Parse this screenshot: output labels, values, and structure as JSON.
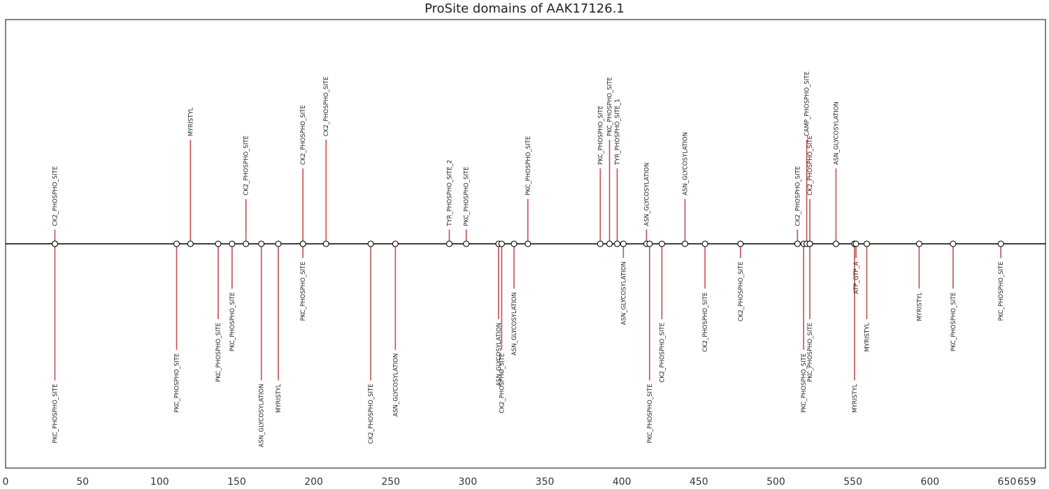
{
  "chart_data": {
    "type": "lollipop",
    "title": "ProSite domains of AAK17126.1",
    "xlim": [
      0,
      675
    ],
    "ylim": [
      -1.1,
      1.1
    ],
    "x_ticks": [
      0,
      50,
      100,
      150,
      200,
      250,
      300,
      350,
      400,
      450,
      500,
      550,
      600,
      650,
      659
    ],
    "grid": false,
    "colors": {
      "stem": "#c44e52",
      "axis": "#000000",
      "marker_fill": "#ffffff",
      "marker_edge": "#000000"
    },
    "sites": [
      {
        "x": 32,
        "y": 0.07,
        "name": "CK2_PHOSPHO_SITE"
      },
      {
        "x": 32,
        "y": -0.67,
        "name": "PKC_PHOSPHO_SITE"
      },
      {
        "x": 111,
        "y": -0.52,
        "name": "PKC_PHOSPHO_SITE"
      },
      {
        "x": 120,
        "y": 0.51,
        "name": "MYRISTYL"
      },
      {
        "x": 138,
        "y": -0.37,
        "name": "PKC_PHOSPHO_SITE"
      },
      {
        "x": 147,
        "y": -0.22,
        "name": "PKC_PHOSPHO_SITE"
      },
      {
        "x": 156,
        "y": 0.22,
        "name": "CK2_PHOSPHO_SITE"
      },
      {
        "x": 166,
        "y": -0.67,
        "name": "ASN_GLYCOSYLATION"
      },
      {
        "x": 177,
        "y": -0.67,
        "name": "MYRISTYL"
      },
      {
        "x": 193,
        "y": 0.37,
        "name": "CK2_PHOSPHO_SITE"
      },
      {
        "x": 193,
        "y": -0.07,
        "name": "PKC_PHOSPHO_SITE"
      },
      {
        "x": 208,
        "y": 0.51,
        "name": "CK2_PHOSPHO_SITE"
      },
      {
        "x": 237,
        "y": -0.67,
        "name": "CK2_PHOSPHO_SITE"
      },
      {
        "x": 253,
        "y": -0.52,
        "name": "ASN_GLYCOSYLATION"
      },
      {
        "x": 288,
        "y": 0.07,
        "name": "TYR_PHOSPHO_SITE_2"
      },
      {
        "x": 299,
        "y": 0.07,
        "name": "PKC_PHOSPHO_SITE"
      },
      {
        "x": 320,
        "y": -0.37,
        "name": "ASN_GLYCOSYLATION"
      },
      {
        "x": 322,
        "y": -0.52,
        "name": "CK2_PHOSPHO_SITE"
      },
      {
        "x": 330,
        "y": -0.22,
        "name": "ASN_GLYCOSYLATION"
      },
      {
        "x": 339,
        "y": 0.22,
        "name": "PKC_PHOSPHO_SITE"
      },
      {
        "x": 386,
        "y": 0.37,
        "name": "PKC_PHOSPHO_SITE"
      },
      {
        "x": 392,
        "y": 0.51,
        "name": "PKC_PHOSPHO_SITE"
      },
      {
        "x": 397,
        "y": 0.37,
        "name": "TYR_PHOSPHO_SITE_1"
      },
      {
        "x": 401,
        "y": -0.07,
        "name": "ASN_GLYCOSYLATION"
      },
      {
        "x": 416,
        "y": 0.07,
        "name": "ASN_GLYCOSYLATION"
      },
      {
        "x": 418,
        "y": -0.67,
        "name": "PKC_PHOSPHO_SITE"
      },
      {
        "x": 426,
        "y": -0.37,
        "name": "CK2_PHOSPHO_SITE"
      },
      {
        "x": 441,
        "y": 0.22,
        "name": "ASN_GLYCOSYLATION"
      },
      {
        "x": 454,
        "y": -0.22,
        "name": "CK2_PHOSPHO_SITE"
      },
      {
        "x": 477,
        "y": -0.07,
        "name": "CK2_PHOSPHO_SITE"
      },
      {
        "x": 514,
        "y": 0.07,
        "name": "CK2_PHOSPHO_SITE"
      },
      {
        "x": 518,
        "y": -0.52,
        "name": "PKC_PHOSPHO_SITE"
      },
      {
        "x": 520,
        "y": 0.51,
        "name": "CAMP_PHOSPHO_SITE"
      },
      {
        "x": 522,
        "y": 0.22,
        "name": "CK2_PHOSPHO_SITE"
      },
      {
        "x": 522,
        "y": -0.37,
        "name": "PKC_PHOSPHO_SITE"
      },
      {
        "x": 539,
        "y": 0.37,
        "name": "ASN_GLYCOSYLATION"
      },
      {
        "x": 551,
        "y": -0.67,
        "name": "MYRISTYL"
      },
      {
        "x": 552,
        "y": -0.07,
        "name": "ATP_GTP_A"
      },
      {
        "x": 559,
        "y": -0.37,
        "name": "MYRISTYL"
      },
      {
        "x": 593,
        "y": -0.22,
        "name": "MYRISTYL"
      },
      {
        "x": 615,
        "y": -0.22,
        "name": "PKC_PHOSPHO_SITE"
      },
      {
        "x": 646,
        "y": -0.07,
        "name": "PKC_PHOSPHO_SITE"
      }
    ]
  }
}
